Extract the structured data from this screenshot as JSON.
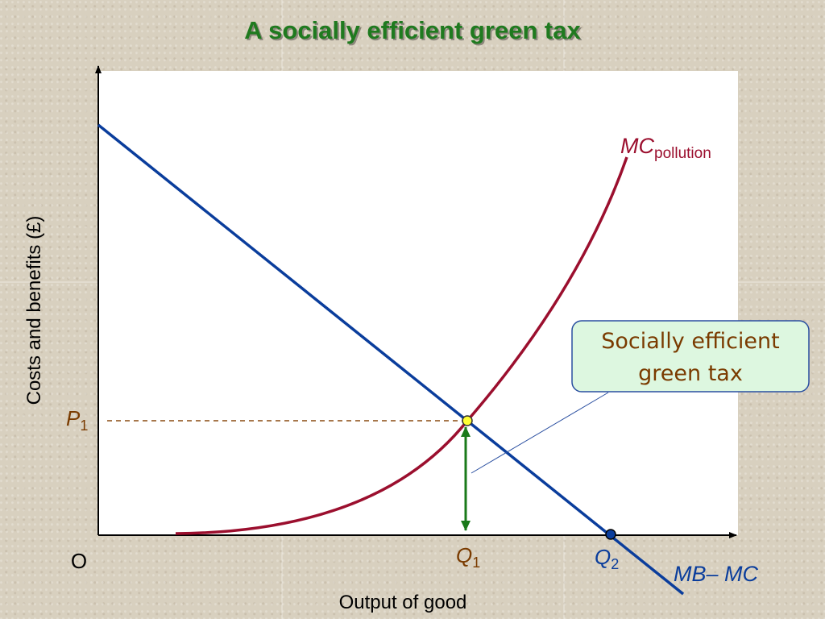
{
  "title": "A socially efficient green tax",
  "axes": {
    "y_label": "Costs and benefits (£)",
    "x_label": "Output of good",
    "origin": "O"
  },
  "curves": {
    "mc_pollution": {
      "main": "MC",
      "sub": "pollution"
    },
    "mb_mc": {
      "main": "MB– MC"
    }
  },
  "points": {
    "p1": {
      "main": "P",
      "sub": "1"
    },
    "q1": {
      "main": "Q",
      "sub": "1"
    },
    "q2": {
      "main": "Q",
      "sub": "2"
    }
  },
  "callout": {
    "lines": [
      "Socially efficient",
      "green tax"
    ]
  }
}
